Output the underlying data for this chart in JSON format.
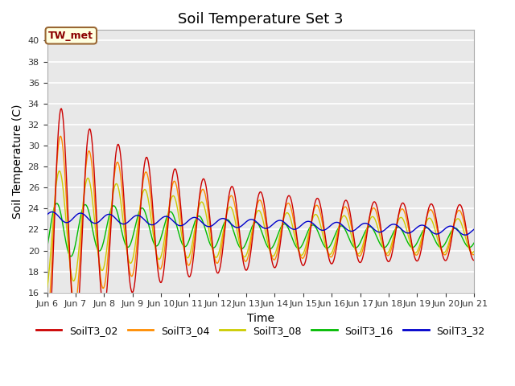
{
  "title": "Soil Temperature Set 3",
  "xlabel": "Time",
  "ylabel": "Soil Temperature (C)",
  "ylim": [
    16,
    41
  ],
  "yticks": [
    16,
    18,
    20,
    22,
    24,
    26,
    28,
    30,
    32,
    34,
    36,
    38,
    40
  ],
  "xtick_labels": [
    "Jun 6",
    "Jun 7",
    "Jun 8",
    "Jun 9",
    "Jun 10",
    "Jun 11",
    "Jun 12",
    "Jun 13",
    "Jun 14",
    "Jun 15",
    "Jun 16",
    "Jun 17",
    "Jun 18",
    "Jun 19",
    "Jun 20",
    "Jun 21"
  ],
  "annotation_text": "TW_met",
  "annotation_color": "#8B0000",
  "annotation_bg": "#FFFFE0",
  "annotation_border": "#996633",
  "colors": {
    "SoilT3_02": "#CC0000",
    "SoilT3_04": "#FF8C00",
    "SoilT3_08": "#CCCC00",
    "SoilT3_16": "#00BB00",
    "SoilT3_32": "#0000CC"
  },
  "bg_color": "#E8E8E8",
  "grid_color": "#FFFFFF",
  "title_fontsize": 13,
  "legend_colors": {
    "SoilT3_02": "#CC0000",
    "SoilT3_04": "#FF8C00",
    "SoilT3_08": "#CCCC00",
    "SoilT3_16": "#00BB00",
    "SoilT3_32": "#0000CC"
  }
}
